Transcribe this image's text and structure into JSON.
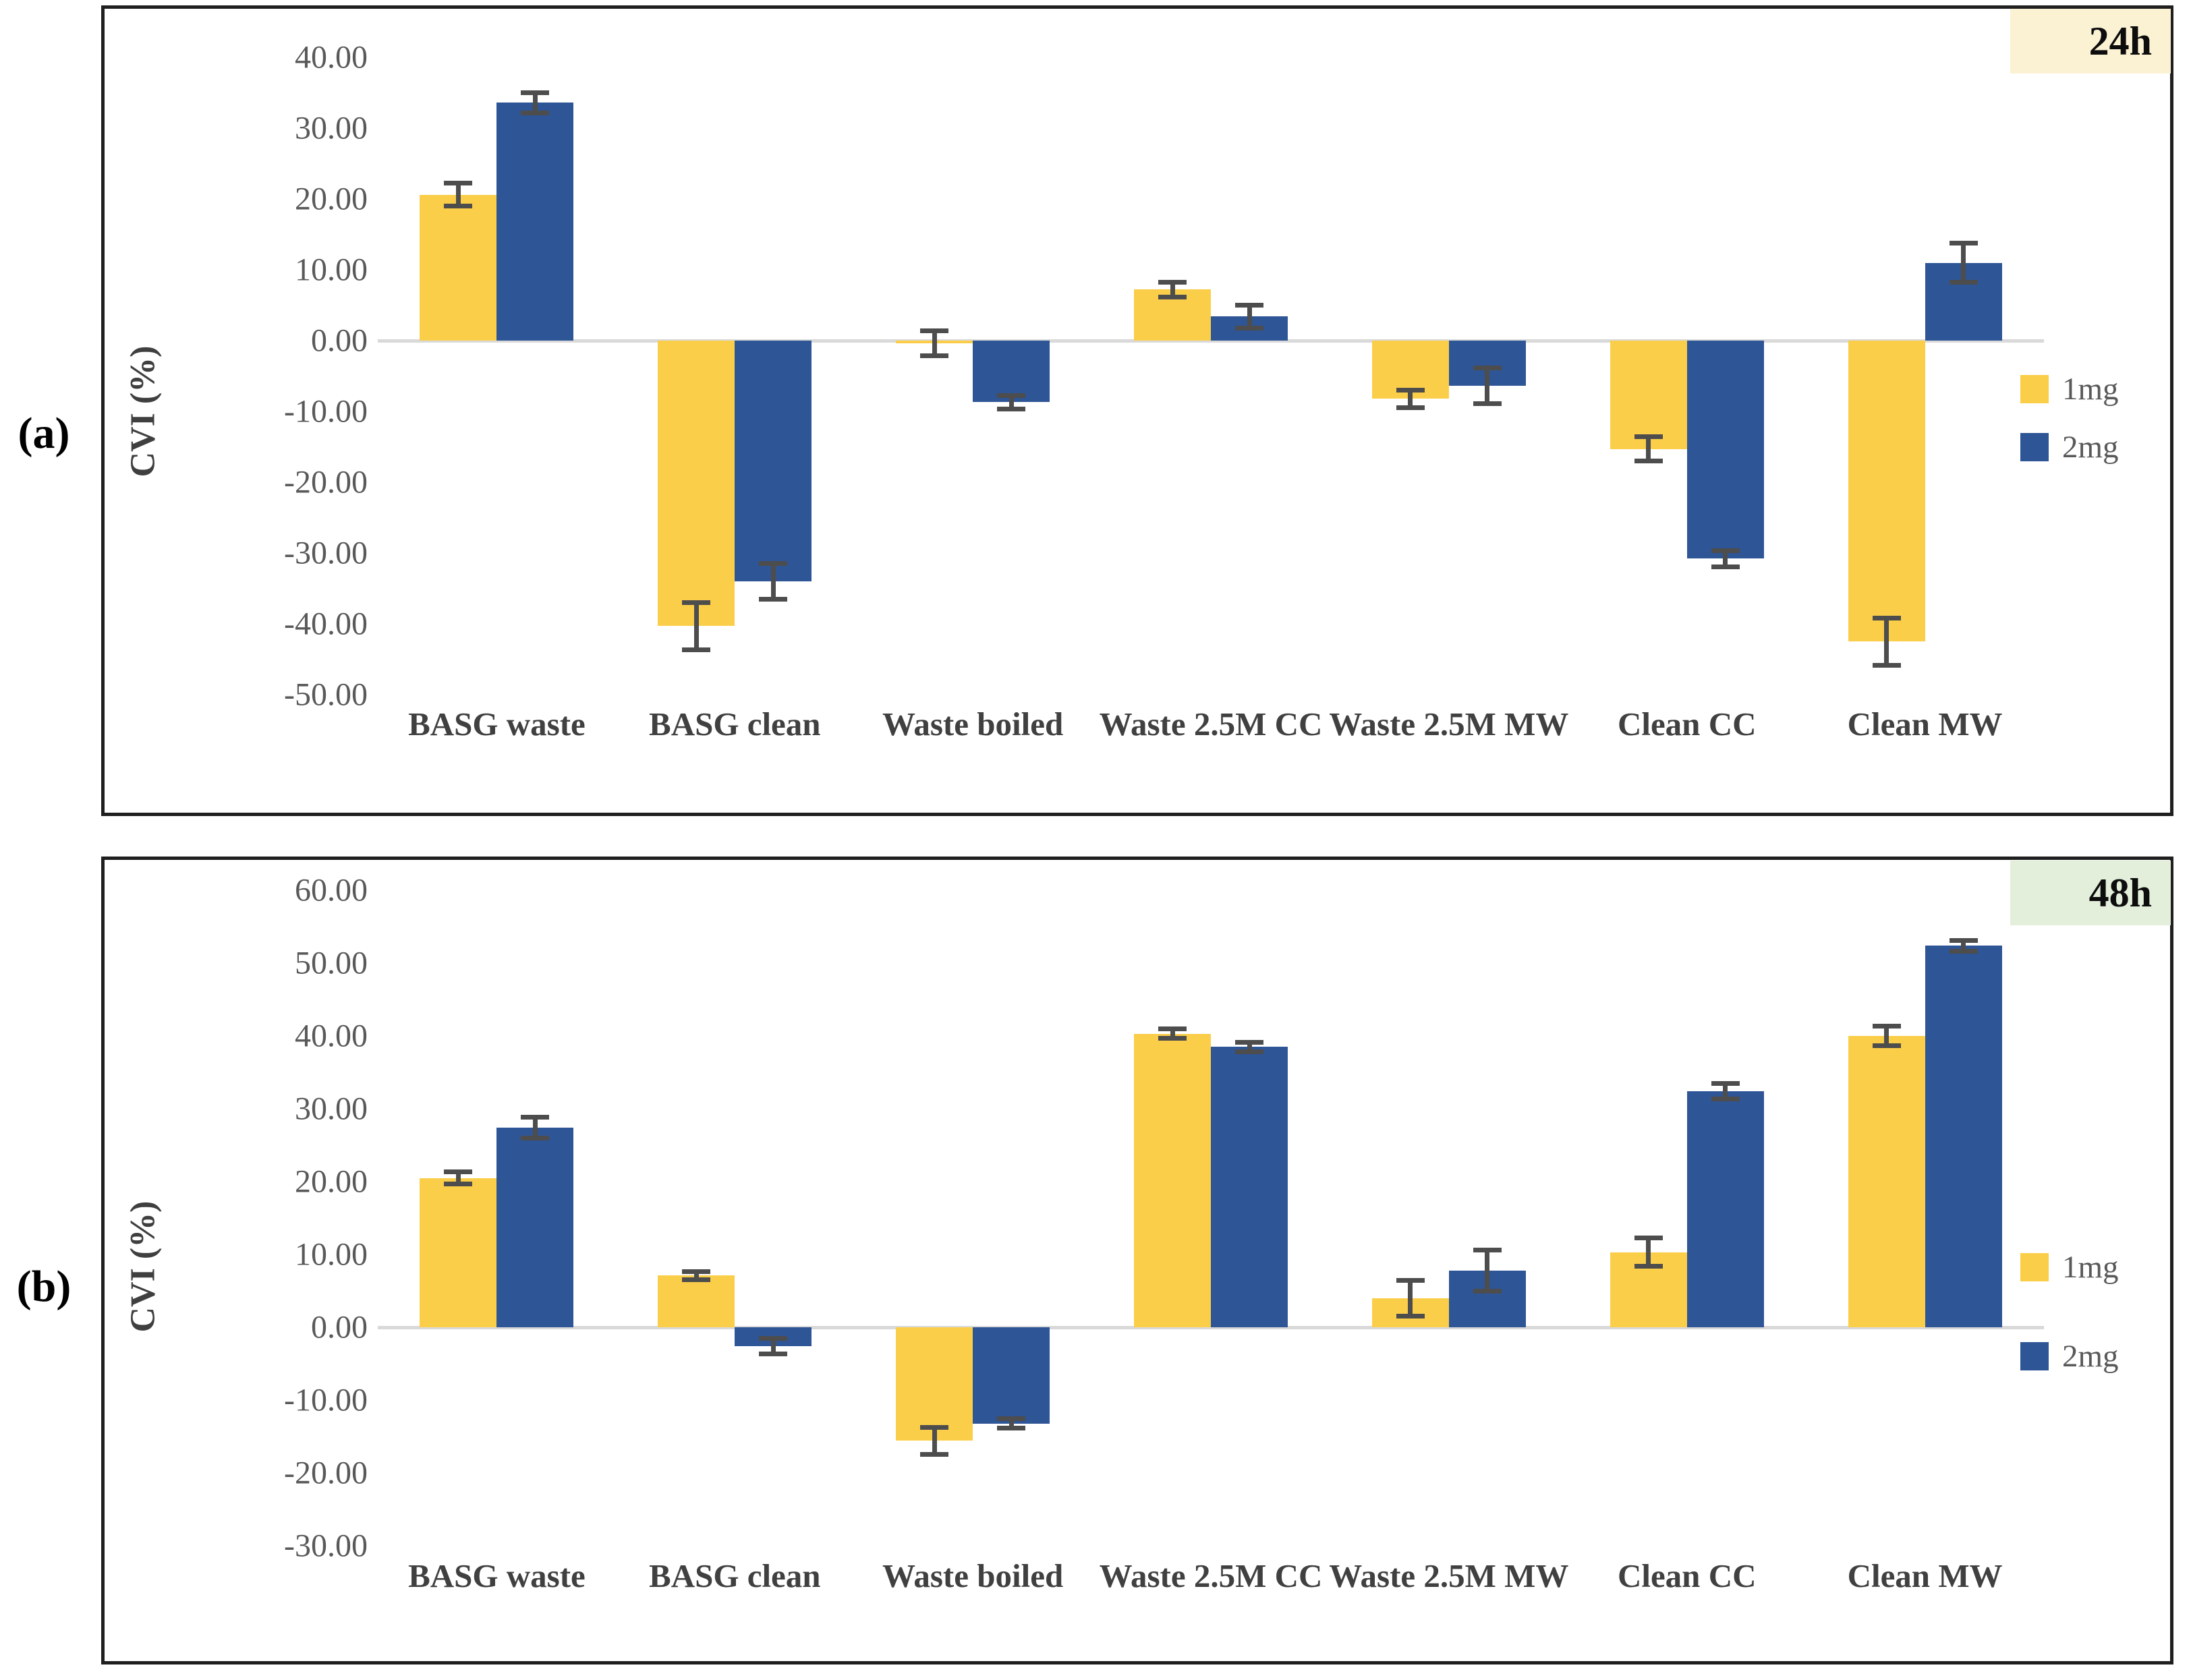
{
  "figure": {
    "panels": [
      {
        "label": "(a)",
        "badge": "24h",
        "badge_bg": "#fbf2d4"
      },
      {
        "label": "(b)",
        "badge": "48h",
        "badge_bg": "#e3efda"
      }
    ],
    "colors": {
      "series_1mg": "#fbce4a",
      "series_2mg": "#2e5596",
      "error_bar": "#4d4d4d",
      "zero_line": "#d9d9d9",
      "axis_text": "#595959",
      "category_text": "#404040",
      "panel_border": "#1f1f1f"
    }
  },
  "chart_data": [
    {
      "type": "bar",
      "panel": "a",
      "badge": "24h",
      "title": "",
      "xlabel": "",
      "ylabel": "CVI (%)",
      "ylim": [
        -50,
        40
      ],
      "ytick_step": 10,
      "yticks": [
        "40.00",
        "30.00",
        "20.00",
        "10.00",
        "0.00",
        "-10.00",
        "-20.00",
        "-30.00",
        "-40.00",
        "-50.00"
      ],
      "grid": false,
      "legend_position": "right",
      "legend": [
        "1mg",
        "2mg"
      ],
      "categories": [
        "BASG waste",
        "BASG clean",
        "Waste boiled",
        "Waste 2.5M CC",
        "Waste 2.5M MW",
        "Clean CC",
        "Clean MW"
      ],
      "series": [
        {
          "name": "1mg",
          "color": "#fbce4a",
          "values": [
            20.6,
            -40.3,
            -0.4,
            7.2,
            -8.2,
            -15.3,
            -42.5
          ],
          "errors": [
            1.5,
            3.2,
            1.6,
            0.9,
            1.1,
            1.6,
            3.2
          ]
        },
        {
          "name": "2mg",
          "color": "#2e5596",
          "values": [
            33.6,
            -34.0,
            -8.7,
            3.4,
            -6.4,
            -30.8,
            11.0
          ],
          "errors": [
            1.3,
            2.4,
            0.8,
            1.5,
            2.4,
            1.0,
            2.6
          ]
        }
      ]
    },
    {
      "type": "bar",
      "panel": "b",
      "badge": "48h",
      "title": "",
      "xlabel": "",
      "ylabel": "CVI (%)",
      "ylim": [
        -30,
        60
      ],
      "ytick_step": 10,
      "yticks": [
        "60.00",
        "50.00",
        "40.00",
        "30.00",
        "20.00",
        "10.00",
        "0.00",
        "-10.00",
        "-20.00",
        "-30.00"
      ],
      "grid": false,
      "legend_position": "right",
      "legend": [
        "1mg",
        "2mg"
      ],
      "categories": [
        "BASG waste",
        "BASG clean",
        "Waste boiled",
        "Waste 2.5M CC",
        "Waste 2.5M MW",
        "Clean CC",
        "Clean MW"
      ],
      "series": [
        {
          "name": "1mg",
          "color": "#fbce4a",
          "values": [
            20.5,
            7.1,
            -15.6,
            40.3,
            4.0,
            10.3,
            40.0
          ],
          "errors": [
            0.7,
            0.4,
            1.7,
            0.5,
            2.3,
            1.8,
            1.2
          ]
        },
        {
          "name": "2mg",
          "color": "#2e5596",
          "values": [
            27.4,
            -2.6,
            -13.2,
            38.5,
            7.8,
            32.4,
            52.4
          ],
          "errors": [
            1.3,
            0.9,
            0.5,
            0.5,
            2.7,
            0.9,
            0.6
          ]
        }
      ]
    }
  ]
}
